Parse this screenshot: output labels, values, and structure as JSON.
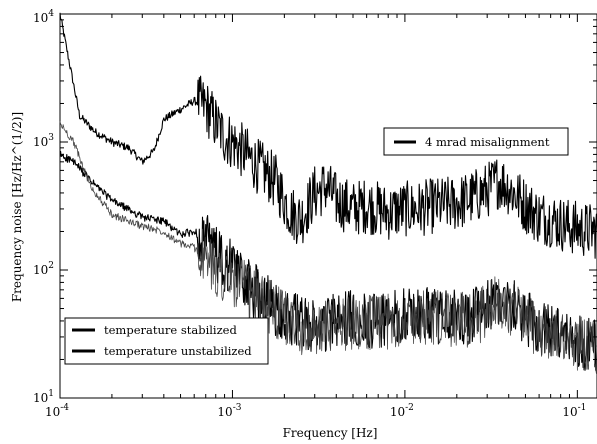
{
  "chart_data": {
    "type": "line",
    "xlabel": "Frequency [Hz]",
    "ylabel": "Frequency noise [Hz/Hz^(1/2)]",
    "xscale": "log",
    "yscale": "log",
    "xlim": [
      0.0001,
      0.13
    ],
    "ylim": [
      10,
      10000
    ],
    "grid": false,
    "x_ticks": [
      {
        "value": 0.0001,
        "base": "10",
        "exp": "-4"
      },
      {
        "value": 0.001,
        "base": "10",
        "exp": "-3"
      },
      {
        "value": 0.01,
        "base": "10",
        "exp": "-2"
      },
      {
        "value": 0.1,
        "base": "10",
        "exp": "-1"
      }
    ],
    "y_ticks": [
      {
        "value": 10,
        "base": "10",
        "exp": "1"
      },
      {
        "value": 100,
        "base": "10",
        "exp": "2"
      },
      {
        "value": 1000,
        "base": "10",
        "exp": "3"
      },
      {
        "value": 10000,
        "base": "10",
        "exp": "4"
      }
    ],
    "legends": [
      {
        "entries": [
          "4 mrad misalignment"
        ],
        "placement": "upper-right"
      },
      {
        "entries": [
          "temperature stabilized",
          "temperature unstabilized"
        ],
        "placement": "lower-left"
      }
    ],
    "series": [
      {
        "name": "4 mrad misalignment",
        "color": "#000000",
        "points": [
          [
            0.0001,
            10000
          ],
          [
            0.00013,
            1600
          ],
          [
            0.00016,
            1200
          ],
          [
            0.0002,
            1000
          ],
          [
            0.00025,
            900
          ],
          [
            0.0003,
            700
          ],
          [
            0.00035,
            850
          ],
          [
            0.0004,
            1500
          ],
          [
            0.0005,
            1800
          ],
          [
            0.0006,
            2100
          ],
          [
            0.0007,
            1900
          ],
          [
            0.0008,
            1400
          ],
          [
            0.0009,
            1100
          ],
          [
            0.001,
            1000
          ],
          [
            0.0012,
            800
          ],
          [
            0.0014,
            650
          ],
          [
            0.0016,
            560
          ],
          [
            0.0018,
            480
          ],
          [
            0.002,
            350
          ],
          [
            0.0022,
            280
          ],
          [
            0.0025,
            250
          ],
          [
            0.003,
            400
          ],
          [
            0.0035,
            450
          ],
          [
            0.004,
            350
          ],
          [
            0.005,
            300
          ],
          [
            0.006,
            320
          ],
          [
            0.007,
            300
          ],
          [
            0.008,
            280
          ],
          [
            0.01,
            300
          ],
          [
            0.012,
            300
          ],
          [
            0.015,
            320
          ],
          [
            0.02,
            330
          ],
          [
            0.025,
            370
          ],
          [
            0.03,
            420
          ],
          [
            0.035,
            500
          ],
          [
            0.04,
            440
          ],
          [
            0.05,
            320
          ],
          [
            0.06,
            260
          ],
          [
            0.07,
            250
          ],
          [
            0.08,
            230
          ],
          [
            0.1,
            210
          ],
          [
            0.13,
            200
          ]
        ]
      },
      {
        "name": "temperature stabilized",
        "color": "#000000",
        "points": [
          [
            0.0001,
            800
          ],
          [
            0.00012,
            700
          ],
          [
            0.00015,
            500
          ],
          [
            0.0002,
            350
          ],
          [
            0.0003,
            260
          ],
          [
            0.0004,
            240
          ],
          [
            0.0005,
            190
          ],
          [
            0.0006,
            200
          ],
          [
            0.0007,
            170
          ],
          [
            0.0008,
            140
          ],
          [
            0.0009,
            100
          ],
          [
            0.001,
            110
          ],
          [
            0.0012,
            80
          ],
          [
            0.0015,
            60
          ],
          [
            0.002,
            45
          ],
          [
            0.0025,
            38
          ],
          [
            0.003,
            35
          ],
          [
            0.004,
            40
          ],
          [
            0.005,
            42
          ],
          [
            0.007,
            40
          ],
          [
            0.01,
            45
          ],
          [
            0.015,
            44
          ],
          [
            0.02,
            42
          ],
          [
            0.025,
            44
          ],
          [
            0.03,
            50
          ],
          [
            0.035,
            62
          ],
          [
            0.04,
            55
          ],
          [
            0.05,
            42
          ],
          [
            0.06,
            36
          ],
          [
            0.08,
            30
          ],
          [
            0.1,
            28
          ],
          [
            0.13,
            26
          ]
        ]
      },
      {
        "name": "temperature unstabilized",
        "color": "#444444",
        "points": [
          [
            0.0001,
            1400
          ],
          [
            0.00012,
            1000
          ],
          [
            0.00015,
            450
          ],
          [
            0.0002,
            270
          ],
          [
            0.0003,
            220
          ],
          [
            0.0004,
            200
          ],
          [
            0.0005,
            160
          ],
          [
            0.0006,
            150
          ],
          [
            0.0007,
            120
          ],
          [
            0.0008,
            100
          ],
          [
            0.001,
            85
          ],
          [
            0.0012,
            70
          ],
          [
            0.0015,
            55
          ],
          [
            0.002,
            42
          ],
          [
            0.0025,
            36
          ],
          [
            0.003,
            33
          ],
          [
            0.004,
            37
          ],
          [
            0.005,
            40
          ],
          [
            0.007,
            38
          ],
          [
            0.01,
            42
          ],
          [
            0.015,
            42
          ],
          [
            0.02,
            40
          ],
          [
            0.025,
            42
          ],
          [
            0.03,
            47
          ],
          [
            0.035,
            58
          ],
          [
            0.04,
            52
          ],
          [
            0.05,
            40
          ],
          [
            0.06,
            34
          ],
          [
            0.08,
            29
          ],
          [
            0.1,
            27
          ],
          [
            0.13,
            25
          ]
        ]
      }
    ]
  }
}
